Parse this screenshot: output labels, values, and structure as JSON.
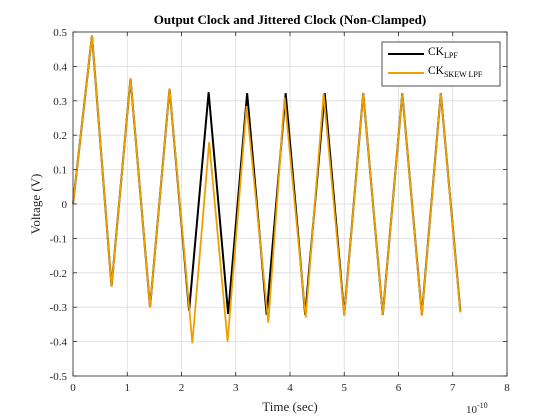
{
  "chart_data": {
    "type": "line",
    "title": "Output Clock and Jittered Clock (Non-Clamped)",
    "xlabel": "Time (sec)",
    "ylabel": "Voltage (V)",
    "x_exponent": "10",
    "x_exponent_power": "-10",
    "xlim": [
      0,
      8
    ],
    "ylim": [
      -0.5,
      0.5
    ],
    "xticks": [
      0,
      1,
      2,
      3,
      4,
      5,
      6,
      7,
      8
    ],
    "yticks": [
      -0.5,
      -0.4,
      -0.3,
      -0.2,
      -0.1,
      0,
      0.1,
      0.2,
      0.3,
      0.4,
      0.5
    ],
    "grid": true,
    "legend_position": "top-right",
    "series": [
      {
        "name": "CK",
        "name_sub": "LPF",
        "color": "#000000",
        "x": [
          0,
          0.35,
          0.71,
          1.06,
          1.42,
          1.78,
          2.14,
          2.5,
          2.86,
          3.21,
          3.57,
          3.92,
          4.28,
          4.64,
          5.0,
          5.35,
          5.71,
          6.07,
          6.43,
          6.78,
          7.14
        ],
        "y": [
          0,
          0.49,
          -0.24,
          0.365,
          -0.3,
          0.335,
          -0.31,
          0.325,
          -0.32,
          0.322,
          -0.322,
          0.322,
          -0.322,
          0.322,
          -0.322,
          0.322,
          -0.322,
          0.322,
          -0.322,
          0.322,
          -0.312
        ]
      },
      {
        "name": "CK",
        "name_sub": "SKEW LPF",
        "color": "#EDA000",
        "x": [
          0,
          0.35,
          0.71,
          1.06,
          1.42,
          1.78,
          2.2,
          2.51,
          2.85,
          3.2,
          3.6,
          3.9,
          4.29,
          4.62,
          5.0,
          5.35,
          5.71,
          6.07,
          6.43,
          6.78,
          7.14
        ],
        "y": [
          0,
          0.49,
          -0.24,
          0.365,
          -0.3,
          0.335,
          -0.405,
          0.18,
          -0.4,
          0.285,
          -0.345,
          0.31,
          -0.33,
          0.32,
          -0.325,
          0.322,
          -0.322,
          0.322,
          -0.325,
          0.322,
          -0.315
        ]
      }
    ]
  }
}
